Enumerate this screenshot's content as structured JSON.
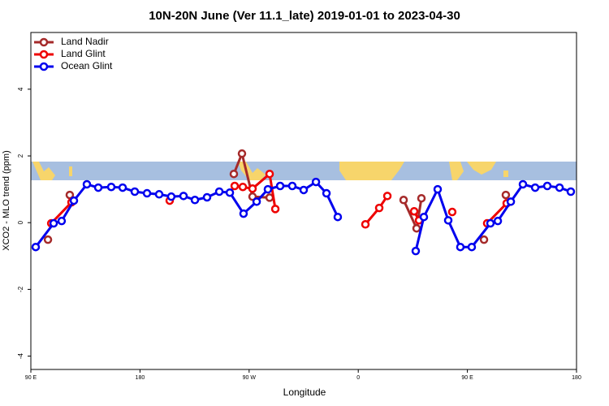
{
  "chart_data": {
    "type": "line",
    "title": "10N-20N June (Ver 11.1_late)   2019-01-01 to 2023-04-30",
    "xlabel": "Longitude",
    "ylabel": "XCO2 - MLO trend (ppm)",
    "xlim": [
      90,
      540
    ],
    "ylim": [
      -4.4,
      5.7
    ],
    "xticks": [
      {
        "value": 90,
        "label": "90 E"
      },
      {
        "value": 180,
        "label": "180"
      },
      {
        "value": 270,
        "label": "90 W"
      },
      {
        "value": 360,
        "label": "0"
      },
      {
        "value": 450,
        "label": "90 E"
      },
      {
        "value": 540,
        "label": "180"
      }
    ],
    "yticks": [
      -4,
      -2,
      0,
      2,
      4
    ],
    "legend": "top-left",
    "series": [
      {
        "name": "Land Nadir",
        "color": "#a52a2a",
        "x": [
          104.1,
          null,
          122.1,
          null,
          257.4,
          264.1,
          272.8,
          286.9,
          null,
          397.4,
          408.1,
          412.1,
          null,
          463.7,
          null,
          481.7
        ],
        "values": [
          -0.51,
          null,
          0.83,
          null,
          1.46,
          2.07,
          0.78,
          0.75,
          null,
          0.68,
          -0.17,
          0.73,
          null,
          -0.51,
          null,
          0.83
        ]
      },
      {
        "name": "Land Glint",
        "color": "#ee0000",
        "x": [
          106.8,
          123.5,
          null,
          204.5,
          null,
          258.1,
          264.8,
          272.8,
          286.9,
          291.6,
          null,
          365.9,
          377.3,
          384.0,
          null,
          406.1,
          410.1,
          null,
          437.5,
          null,
          466.3,
          482.4
        ],
        "values": [
          -0.02,
          0.61,
          null,
          0.66,
          null,
          1.1,
          1.07,
          1.02,
          1.46,
          0.41,
          null,
          -0.05,
          0.44,
          0.8,
          null,
          0.34,
          0.07,
          null,
          0.32,
          null,
          -0.02,
          0.58
        ]
      },
      {
        "name": "Ocean Glint",
        "color": "#0000ee",
        "x": [
          94.0,
          108.8,
          115.4,
          125.5,
          136.2,
          145.6,
          156.3,
          165.7,
          175.7,
          185.8,
          195.8,
          205.8,
          215.9,
          225.3,
          235.3,
          245.4,
          254.1,
          265.4,
          276.2,
          285.5,
          295.6,
          305.6,
          315.0,
          325.1,
          333.8,
          343.1,
          null,
          407.4,
          414.1,
          425.5,
          434.2,
          444.2,
          453.6,
          469.0,
          475.1,
          485.8,
          495.8,
          505.9,
          515.9,
          526.0,
          535.3
        ],
        "values": [
          -0.73,
          -0.02,
          0.05,
          0.66,
          1.15,
          1.05,
          1.07,
          1.05,
          0.93,
          0.88,
          0.85,
          0.78,
          0.8,
          0.68,
          0.76,
          0.93,
          0.9,
          0.27,
          0.63,
          1.0,
          1.1,
          1.1,
          0.98,
          1.22,
          0.88,
          0.17,
          null,
          -0.85,
          0.17,
          1.0,
          0.07,
          -0.73,
          -0.73,
          -0.02,
          0.05,
          0.63,
          1.15,
          1.05,
          1.1,
          1.05,
          0.93
        ]
      }
    ]
  }
}
